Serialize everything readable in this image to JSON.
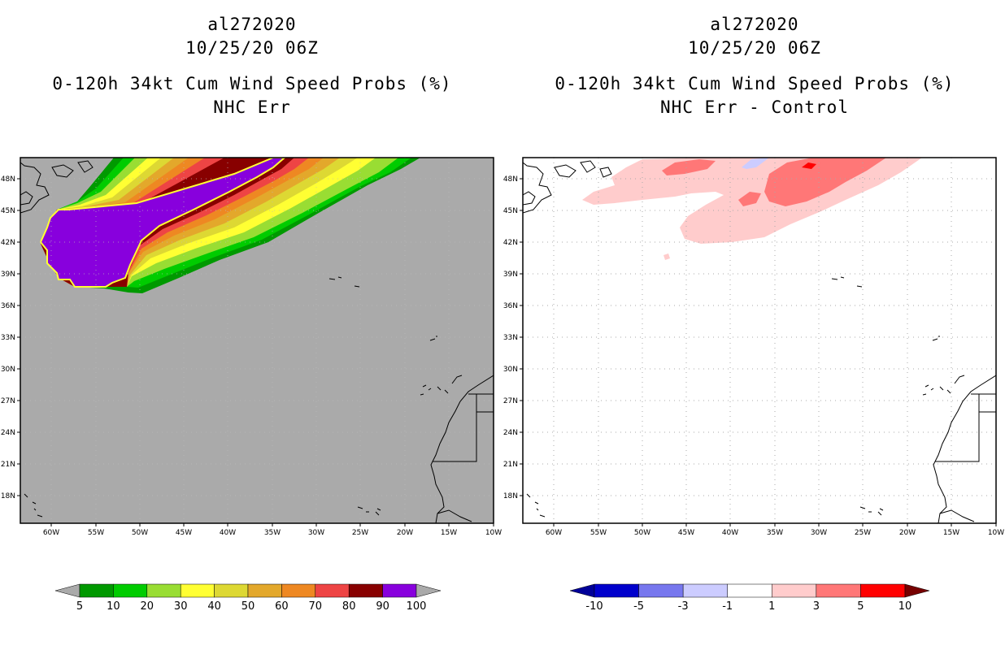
{
  "left_panel": {
    "storm_id": "al272020",
    "datetime": "10/25/20 06Z",
    "product": "0-120h 34kt Cum Wind Speed Probs (%)",
    "field": "NHC Err"
  },
  "right_panel": {
    "storm_id": "al272020",
    "datetime": "10/25/20 06Z",
    "product": "0-120h 34kt Cum Wind Speed Probs (%)",
    "field": "NHC Err - Control"
  },
  "map_axes": {
    "lat_labels": [
      "48N",
      "45N",
      "42N",
      "39N",
      "36N",
      "33N",
      "30N",
      "27N",
      "24N",
      "21N",
      "18N"
    ],
    "lon_labels": [
      "60W",
      "55W",
      "50W",
      "45W",
      "40W",
      "35W",
      "30W",
      "25W",
      "20W",
      "15W",
      "10W"
    ]
  },
  "left_colorbar": {
    "labels": [
      "5",
      "10",
      "20",
      "30",
      "40",
      "50",
      "60",
      "70",
      "80",
      "90",
      "100"
    ],
    "colors": [
      "#009900",
      "#00cc00",
      "#99dd33",
      "#ffff33",
      "#ddd833",
      "#e3a82b",
      "#ee8822",
      "#ee4444",
      "#880000",
      "#8800dd"
    ],
    "below_color": "#aaaaaa",
    "above_color": "#aaaaaa"
  },
  "right_colorbar": {
    "labels": [
      "-10",
      "-5",
      "-3",
      "-1",
      "1",
      "3",
      "5",
      "10"
    ],
    "colors": [
      "#0000cc",
      "#7777ee",
      "#ccccff",
      "#ffffff",
      "#ffcccc",
      "#ff7777",
      "#ff0000"
    ],
    "below_color": "#000099",
    "above_color": "#770000"
  }
}
